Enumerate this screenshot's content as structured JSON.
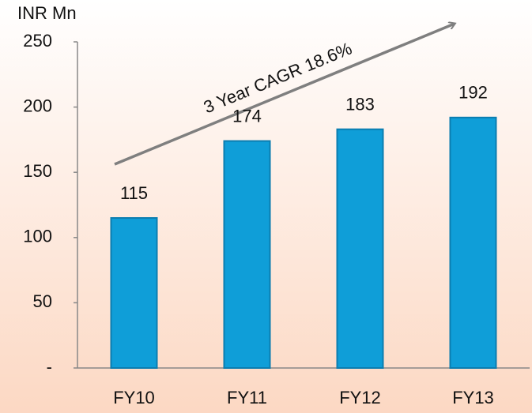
{
  "chart_data": {
    "type": "bar",
    "y_label": "INR Mn",
    "annotation": "3 Year CAGR 18.6%",
    "categories": [
      "FY10",
      "FY11",
      "FY12",
      "FY13"
    ],
    "values": [
      115,
      174,
      183,
      192
    ],
    "color": "#0f9ed8",
    "ylim": [
      0,
      250
    ],
    "yticks": [
      {
        "value": 0,
        "label": "-"
      },
      50,
      100,
      150,
      200,
      250
    ],
    "grid": false
  }
}
